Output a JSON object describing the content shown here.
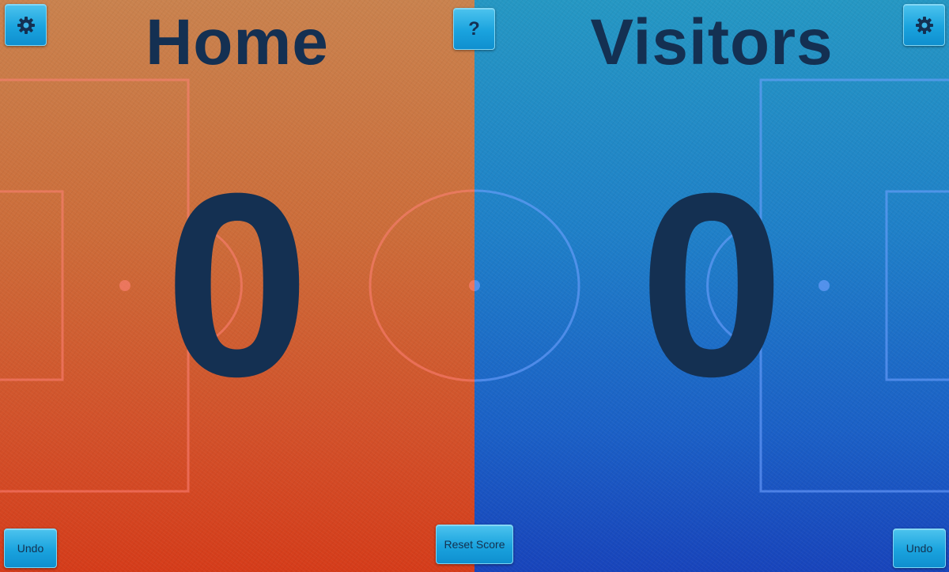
{
  "home": {
    "name": "Home",
    "score": "0",
    "undo_label": "Undo",
    "settings_icon": "gear-icon",
    "color": "#d2512a"
  },
  "visitors": {
    "name": "Visitors",
    "score": "0",
    "undo_label": "Undo",
    "settings_icon": "gear-icon",
    "color": "#1b60c6"
  },
  "controls": {
    "help_label": "?",
    "reset_label": "Reset Score"
  },
  "theme": {
    "text_color": "#143052",
    "button_color": "#1aa3de"
  }
}
